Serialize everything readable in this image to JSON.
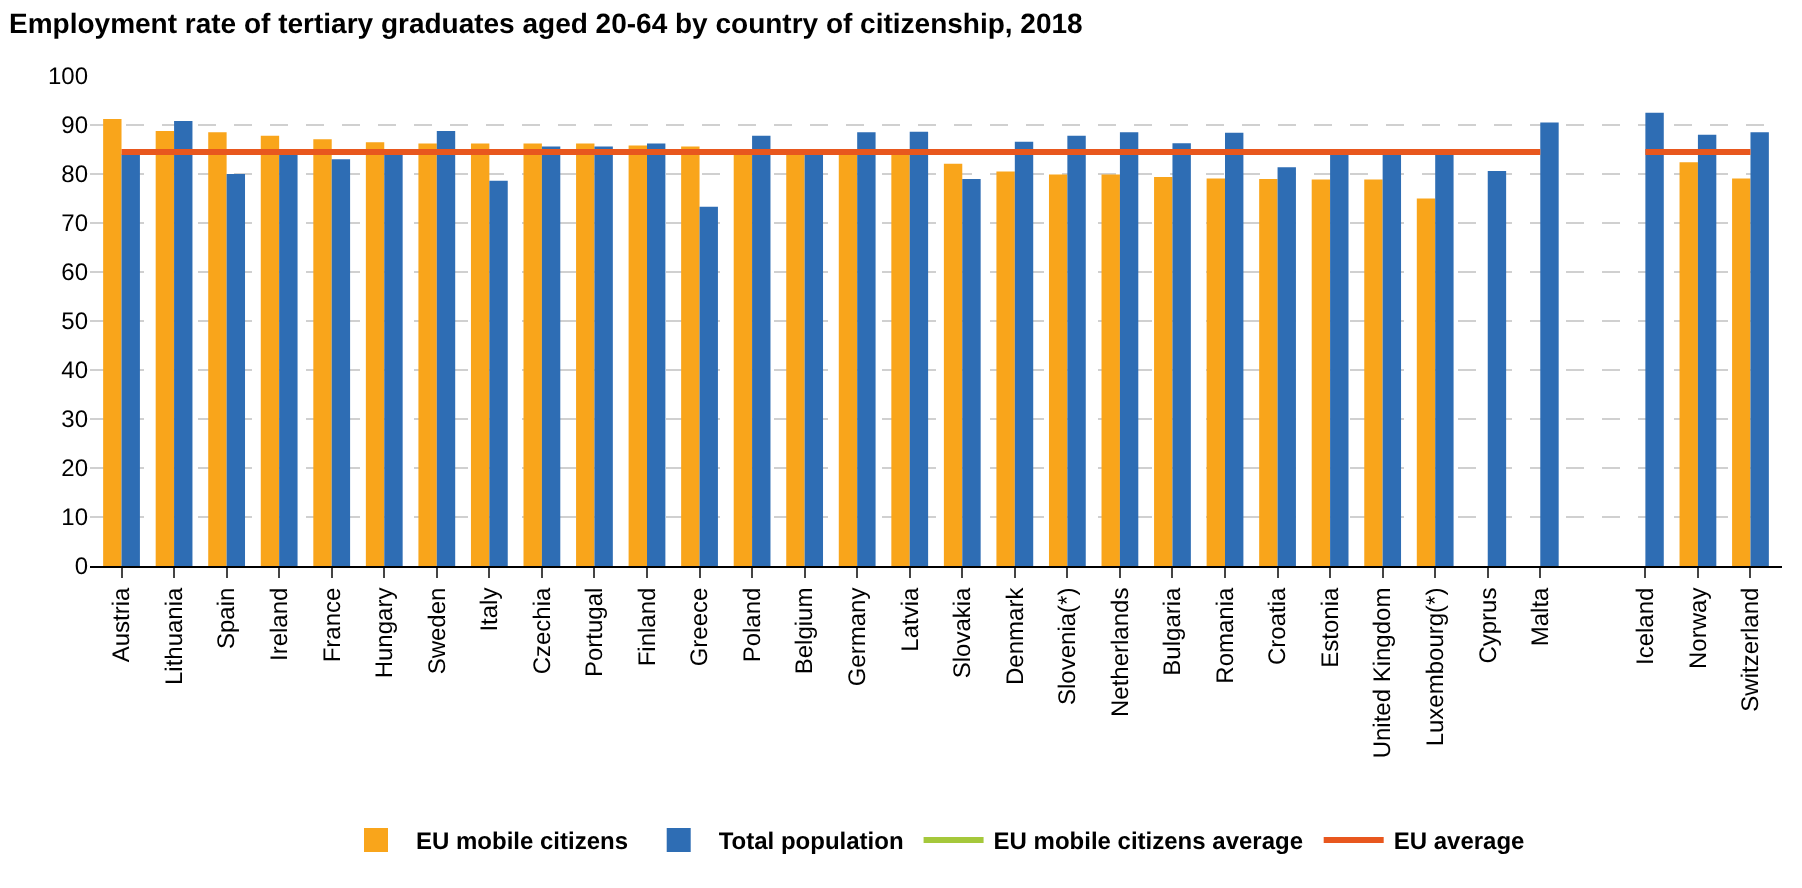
{
  "chart_data": {
    "type": "bar",
    "title": "Employment rate of tertiary graduates aged 20-64 by country of citizenship, 2018",
    "categories": [
      "Austria",
      "Lithuania",
      "Spain",
      "Ireland",
      "France",
      "Hungary",
      "Sweden",
      "Italy",
      "Czechia",
      "Portugal",
      "Finland",
      "Greece",
      "Poland",
      "Belgium",
      "Germany",
      "Latvia",
      "Slovakia",
      "Denmark",
      "Slovenia(*)",
      "Netherlands",
      "Bulgaria",
      "Romania",
      "Croatia",
      "Estonia",
      "United Kingdom",
      "Luxembourg(*)",
      "Cyprus",
      "Malta",
      null,
      "Iceland",
      "Norway",
      "Switzerland"
    ],
    "series": [
      {
        "name": "EU mobile citizens",
        "color": "#f9a51b",
        "values": [
          91.2,
          88.8,
          88.5,
          87.8,
          87.1,
          86.5,
          86.2,
          86.2,
          86.2,
          86.2,
          85.8,
          85.6,
          85,
          84,
          85,
          84,
          82.1,
          80.5,
          79.9,
          79.9,
          79.4,
          79.1,
          79,
          78.9,
          78.9,
          75,
          null,
          null,
          null,
          null,
          82.4,
          79.1
        ]
      },
      {
        "name": "Total population",
        "color": "#2e6db4",
        "values": [
          84,
          90.8,
          80,
          84,
          83,
          84,
          88.8,
          78.6,
          85.6,
          85.6,
          86.2,
          73.3,
          87.8,
          84,
          88.5,
          88.6,
          79,
          86.6,
          87.8,
          88.5,
          86.3,
          88.4,
          81.4,
          84,
          84,
          84,
          80.6,
          90.5,
          null,
          92.5,
          88,
          88.5
        ]
      },
      {
        "name": "EU mobile citizens average",
        "type": "line",
        "color": "#a5c83b",
        "values": [
          null,
          null,
          null,
          null,
          null,
          null,
          null,
          null,
          null,
          null,
          null,
          null,
          null,
          null,
          null,
          null,
          null,
          null,
          null,
          null,
          null,
          null,
          null,
          null,
          null,
          null,
          null,
          null,
          null,
          null,
          null,
          null
        ]
      },
      {
        "name": "EU average",
        "type": "line",
        "color": "#e8571e",
        "values": [
          84.5,
          84.5,
          84.5,
          84.5,
          84.5,
          84.5,
          84.5,
          84.5,
          84.5,
          84.5,
          84.5,
          84.5,
          84.5,
          84.5,
          84.5,
          84.5,
          84.5,
          84.5,
          84.5,
          84.5,
          84.5,
          84.5,
          84.5,
          84.5,
          84.5,
          84.5,
          84.5,
          84.5,
          null,
          84.5,
          84.5,
          84.5
        ]
      }
    ],
    "ylim": [
      0,
      100
    ],
    "yticks": [
      0,
      10,
      20,
      30,
      40,
      50,
      60,
      70,
      80,
      90,
      100
    ],
    "grid": "y",
    "legend": "bottom",
    "marker": "none"
  }
}
